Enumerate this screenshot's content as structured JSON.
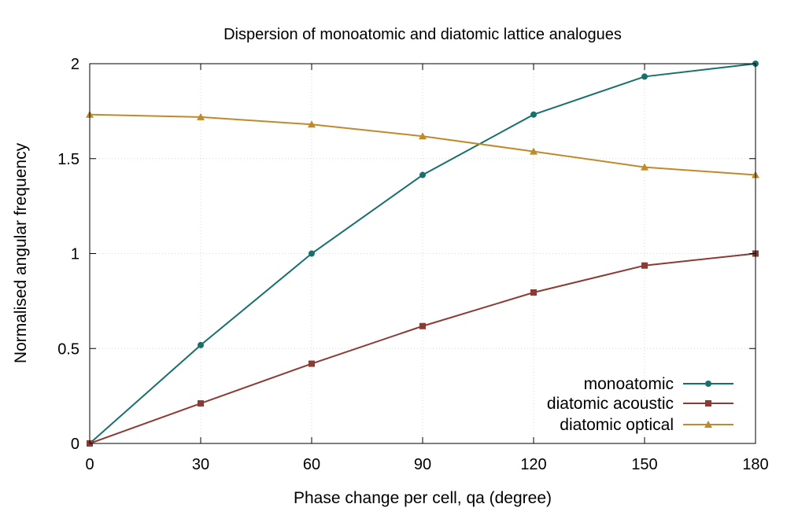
{
  "chart_data": {
    "type": "line",
    "title": "Dispersion of monoatomic and diatomic lattice analogues",
    "xlabel": "Phase change per cell, qa (degree)",
    "ylabel": "Normalised angular frequency",
    "xlim": [
      0,
      180
    ],
    "ylim": [
      0,
      2
    ],
    "xticks": [
      0,
      30,
      60,
      90,
      120,
      150,
      180
    ],
    "yticks": [
      0,
      0.5,
      1,
      1.5,
      2
    ],
    "xtick_labels": [
      "0",
      "30",
      "60",
      "90",
      "120",
      "150",
      "180"
    ],
    "ytick_labels": [
      "0",
      "0.5",
      "1",
      "1.5",
      "2"
    ],
    "grid": true,
    "legend_position": "bottom-right",
    "x": [
      0,
      30,
      60,
      90,
      120,
      150,
      180
    ],
    "series": [
      {
        "name": "monoatomic",
        "color": "#17706e",
        "marker": "circle",
        "values": [
          0,
          0.518,
          1.0,
          1.414,
          1.732,
          1.932,
          2.0
        ]
      },
      {
        "name": "diatomic acoustic",
        "color": "#8b3a34",
        "marker": "square",
        "values": [
          0,
          0.211,
          0.42,
          0.618,
          0.795,
          0.937,
          1.0
        ]
      },
      {
        "name": "diatomic optical",
        "color": "#c08a2b",
        "marker": "triangle",
        "values": [
          1.732,
          1.719,
          1.68,
          1.618,
          1.538,
          1.455,
          1.414
        ]
      }
    ]
  }
}
